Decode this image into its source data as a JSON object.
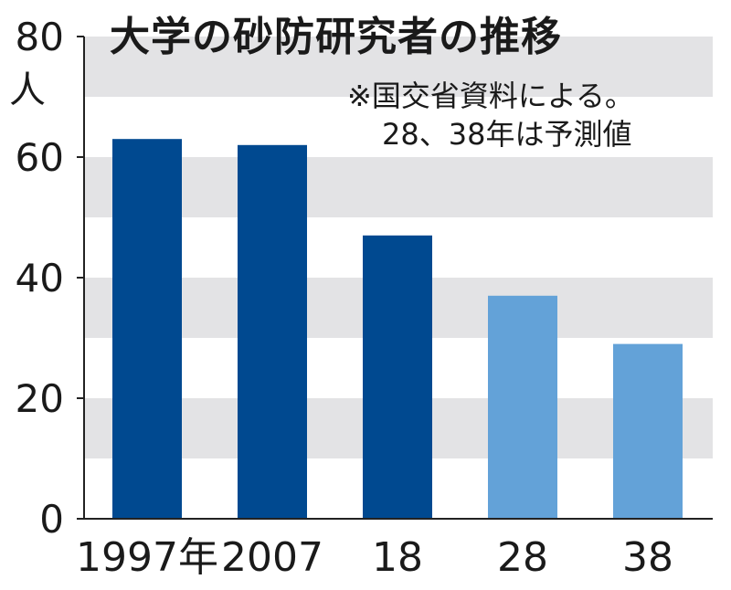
{
  "chart_data": {
    "type": "bar",
    "title": "大学の砂防研究者の推移",
    "note_line1": "※国交省資料による。",
    "note_line2": "28、38年は予測値",
    "ylabel": "人",
    "ylim": [
      0,
      80
    ],
    "yticks": [
      "0",
      "20",
      "40",
      "60",
      "80"
    ],
    "categories": [
      "1997年",
      "2007",
      "18",
      "28",
      "38"
    ],
    "values": [
      63,
      62,
      47,
      37,
      29
    ],
    "projected": [
      false,
      false,
      false,
      true,
      true
    ],
    "grid": "alternating horizontal bands",
    "colors": {
      "actual": "#004990",
      "projected": "#63a2d8",
      "band": "#e3e3e5",
      "axis": "#222222"
    }
  }
}
